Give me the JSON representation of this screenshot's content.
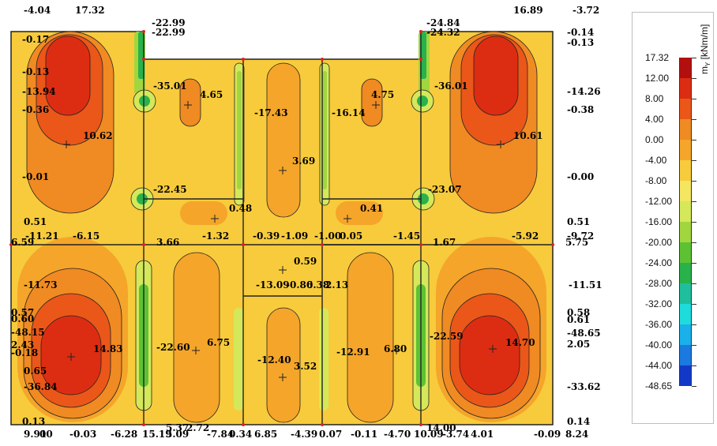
{
  "legend": {
    "title_main": "m",
    "title_sub": "Y",
    "title_unit": "[kNm/m]",
    "entries": [
      {
        "label": "17.32",
        "color": "#b40f0f"
      },
      {
        "label": "12.00",
        "color": "#dc2d12"
      },
      {
        "label": "8.00",
        "color": "#ea5719"
      },
      {
        "label": "4.00",
        "color": "#f08a22"
      },
      {
        "label": "0.00",
        "color": "#f5a52a"
      },
      {
        "label": "-4.00",
        "color": "#f7cb3c"
      },
      {
        "label": "-8.00",
        "color": "#f4e661"
      },
      {
        "label": "-12.00",
        "color": "#d5e85a"
      },
      {
        "label": "-16.00",
        "color": "#a2d63f"
      },
      {
        "label": "-20.00",
        "color": "#5dc233"
      },
      {
        "label": "-24.00",
        "color": "#29b24b"
      },
      {
        "label": "-28.00",
        "color": "#1fbf9e"
      },
      {
        "label": "-32.00",
        "color": "#1fdcdc"
      },
      {
        "label": "-36.00",
        "color": "#1ab1ea"
      },
      {
        "label": "-40.00",
        "color": "#1a7ae0"
      },
      {
        "label": "-44.00",
        "color": "#1238c8"
      },
      {
        "label": "-48.65",
        "color": "#3c12b4"
      }
    ]
  },
  "plot_labels": [
    "-4.04",
    "17.32",
    "-22.99",
    "-22.99",
    "-0.17",
    "-0.13",
    "-13.94",
    "-0.36",
    "-35.01",
    "4.65",
    "-17.43",
    "-16.14",
    "4.75",
    "-36.01",
    "-24.84",
    "-24.32",
    "16.89",
    "-3.72",
    "-0.14",
    "-0.13",
    "-14.26",
    "-0.38",
    "10.62",
    "10.61",
    "3.69",
    "-0.01",
    "-22.45",
    "-23.07",
    "-0.00",
    "0.48",
    "0.41",
    "0.51",
    "0.51",
    "-11.21",
    "-6.15",
    "-1.32",
    "-0.39",
    "-1.09",
    "-1.00",
    "0.05",
    "-1.45",
    "-5.92",
    "-9.72",
    "6.59",
    "3.66",
    "1.67",
    "5.75",
    "0.59",
    "-13.09",
    "-0.86",
    "0.38",
    "2.13",
    "-11.73",
    "-11.51",
    "0.57",
    "0.60",
    "-48.15",
    "0.58",
    "0.61",
    "-48.65",
    "2.43",
    "-0.18",
    "14.83",
    "-22.60",
    "6.75",
    "-12.40",
    "3.52",
    "-12.91",
    "6.80",
    "-22.59",
    "14.70",
    "2.05",
    "0.65",
    "-36.84",
    "-33.62",
    "0.13",
    "0.14",
    "9.91",
    "00",
    "-0.03",
    "-6.28",
    "15.19",
    "5.37",
    "5.09",
    "2.72",
    "-7.84",
    "0.34",
    "6.85",
    "-4.39",
    "0.07",
    "-0.11",
    "-4.70",
    "14.00",
    "10.09",
    "-3.74",
    "4.01",
    "-0.09",
    "8.24"
  ]
}
